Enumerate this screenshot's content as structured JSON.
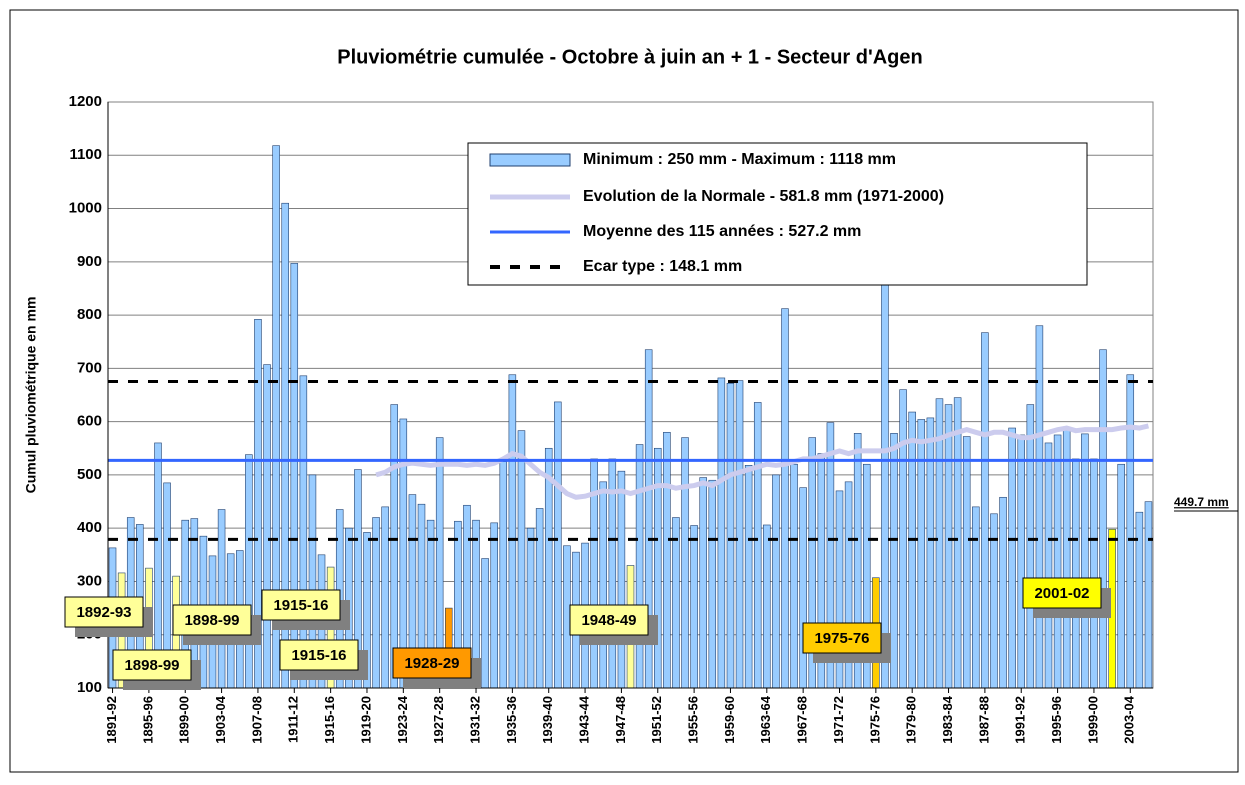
{
  "chart_data": {
    "type": "bar",
    "title": "Pluviométrie cumulée - Octobre à juin an + 1 - Secteur d'Agen",
    "y_label": "Cumul pluviométrique en mm",
    "categories": [
      "1891-92",
      null,
      null,
      null,
      "1895-96",
      null,
      null,
      null,
      "1899-00",
      null,
      null,
      null,
      "1903-04",
      null,
      null,
      null,
      "1907-08",
      null,
      null,
      null,
      "1911-12",
      null,
      null,
      null,
      "1915-16",
      null,
      null,
      null,
      "1919-20",
      null,
      null,
      null,
      "1923-24",
      null,
      null,
      null,
      "1927-28",
      null,
      null,
      null,
      "1931-32",
      null,
      null,
      null,
      "1935-36",
      null,
      null,
      null,
      "1939-40",
      null,
      null,
      null,
      "1943-44",
      null,
      null,
      null,
      "1947-48",
      null,
      null,
      null,
      "1951-52",
      null,
      null,
      null,
      "1955-56",
      null,
      null,
      null,
      "1959-60",
      null,
      null,
      null,
      "1963-64",
      null,
      null,
      null,
      "1967-68",
      null,
      null,
      null,
      "1971-72",
      null,
      null,
      null,
      "1975-76",
      null,
      null,
      null,
      "1979-80",
      null,
      null,
      null,
      "1983-84",
      null,
      null,
      null,
      "1987-88",
      null,
      null,
      null,
      "1991-92",
      null,
      null,
      null,
      "1995-96",
      null,
      null,
      null,
      "1999-00",
      null,
      null,
      null,
      "2003-04",
      null,
      null
    ],
    "series": [
      {
        "name": "Minimum : 250 mm - Maximum : 1118 mm",
        "color": "#99ccff",
        "values": [
          363,
          316,
          420,
          407,
          325,
          560,
          485,
          310,
          415,
          418,
          385,
          348,
          435,
          352,
          358,
          538,
          792,
          707,
          1118,
          1010,
          897,
          686,
          500,
          350,
          327,
          435,
          400,
          510,
          392,
          420,
          440,
          632,
          605,
          463,
          445,
          415,
          570,
          250,
          413,
          443,
          415,
          343,
          410,
          525,
          688,
          583,
          400,
          437,
          550,
          637,
          367,
          355,
          372,
          530,
          487,
          530,
          507,
          330,
          557,
          735,
          550,
          580,
          420,
          570,
          405,
          495,
          490,
          682,
          672,
          677,
          518,
          636,
          406,
          500,
          812,
          520,
          476,
          570,
          540,
          598,
          470,
          487,
          578,
          520,
          307,
          870,
          578,
          660,
          618,
          604,
          607,
          643,
          632,
          645,
          572,
          440,
          767,
          427,
          458,
          588,
          575,
          632,
          780,
          560,
          575,
          588,
          530,
          577,
          530,
          735,
          398,
          520,
          688,
          430,
          449.7
        ]
      },
      {
        "name": "Evolution de la Normale - 581.8 mm (1971-2000)",
        "color": "#ccccee",
        "values": [
          null,
          null,
          null,
          null,
          null,
          null,
          null,
          null,
          null,
          null,
          null,
          null,
          null,
          null,
          null,
          null,
          null,
          null,
          null,
          null,
          null,
          null,
          null,
          null,
          null,
          null,
          null,
          null,
          null,
          500,
          505,
          515,
          520,
          522,
          520,
          518,
          520,
          520,
          520,
          518,
          520,
          518,
          522,
          530,
          540,
          535,
          520,
          505,
          495,
          480,
          465,
          458,
          460,
          465,
          470,
          468,
          470,
          465,
          470,
          475,
          480,
          480,
          475,
          478,
          480,
          485,
          480,
          490,
          500,
          505,
          510,
          515,
          520,
          518,
          520,
          525,
          530,
          530,
          535,
          540,
          545,
          540,
          545,
          545,
          545,
          545,
          550,
          560,
          565,
          562,
          565,
          568,
          575,
          580,
          585,
          580,
          575,
          580,
          580,
          575,
          570,
          570,
          575,
          580,
          585,
          588,
          583,
          585,
          585,
          585,
          585,
          588,
          590,
          588,
          592
        ]
      }
    ],
    "mean": {
      "name": "Moyenne des 115 années : 527.2 mm",
      "value": 527.2,
      "color": "#3366ff"
    },
    "std": {
      "name": "Ecar type : 148.1 mm",
      "value": 148.1,
      "color": "#000000"
    },
    "highlights": [
      {
        "index": 1,
        "color": "#ffff99"
      },
      {
        "index": 4,
        "color": "#ffff99"
      },
      {
        "index": 7,
        "color": "#ffff99"
      },
      {
        "index": 24,
        "color": "#ffff99"
      },
      {
        "index": 37,
        "color": "#ff9900"
      },
      {
        "index": 57,
        "color": "#ffff99"
      },
      {
        "index": 84,
        "color": "#ffcc00"
      },
      {
        "index": 110,
        "color": "#ffff00"
      }
    ],
    "annotations": [
      {
        "text": "1892-93",
        "color": "#ffff99"
      },
      {
        "text": "1898-99",
        "color": "#ffff99"
      },
      {
        "text": "1898-99",
        "color": "#ffff99"
      },
      {
        "text": "1915-16",
        "color": "#ffff99"
      },
      {
        "text": "1915-16",
        "color": "#ffff99"
      },
      {
        "text": "1928-29",
        "color": "#ff9900"
      },
      {
        "text": "1948-49",
        "color": "#ffff99"
      },
      {
        "text": "1975-76",
        "color": "#ffcc00"
      },
      {
        "text": "2001-02",
        "color": "#ffff00"
      }
    ],
    "last_label": "449.7 mm",
    "ylim": [
      100,
      1200
    ],
    "yticks": [
      100,
      200,
      300,
      400,
      500,
      600,
      700,
      800,
      900,
      1000,
      1100,
      1200
    ],
    "grid": true
  }
}
